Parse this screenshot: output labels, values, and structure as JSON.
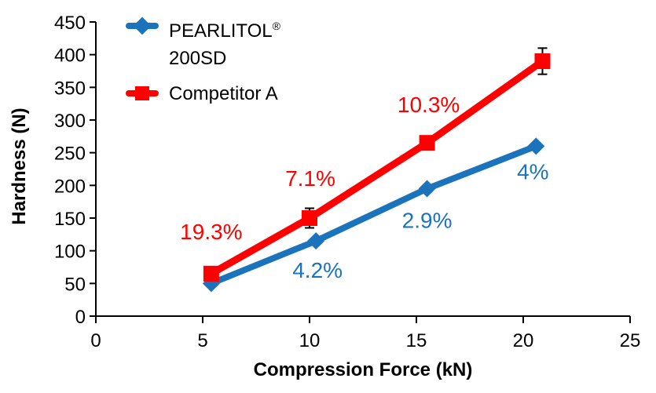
{
  "chart_data": {
    "type": "line",
    "title": "",
    "xlabel": "Compression Force (kN)",
    "ylabel": "Hardness (N)",
    "xlim": [
      0,
      25
    ],
    "ylim": [
      0,
      450
    ],
    "xticks": [
      0,
      5,
      10,
      15,
      20,
      25
    ],
    "yticks": [
      0,
      50,
      100,
      150,
      200,
      250,
      300,
      350,
      400,
      450
    ],
    "grid": false,
    "legend_position": "top-left-inside",
    "axis_color": "#000000",
    "error_bar_color": "#000000",
    "series": [
      {
        "name": "PEARLITOL® 200SD",
        "legend": {
          "line1": "PEARLITOL",
          "sup": "®",
          "line2": "200SD"
        },
        "color": "#1b74bb",
        "marker": "diamond",
        "marker_size": 22,
        "line_width": 8,
        "x": [
          5.4,
          10.3,
          15.5,
          20.6
        ],
        "y": [
          50,
          115,
          195,
          260
        ],
        "error": [
          0,
          0,
          0,
          0
        ],
        "point_labels": [
          {
            "text": "",
            "dx": 0,
            "dy": 0
          },
          {
            "text": "4.2%",
            "dx": 2,
            "dy": 47
          },
          {
            "text": "2.9%",
            "dx": 0,
            "dy": 50
          },
          {
            "text": "4%",
            "dx": -4,
            "dy": 42
          }
        ]
      },
      {
        "name": "Competitor A",
        "legend": {
          "line1": "Competitor A",
          "sup": "",
          "line2": ""
        },
        "color": "#fe0000",
        "marker": "square",
        "marker_size": 20,
        "line_width": 9,
        "x": [
          5.4,
          10.0,
          15.5,
          20.9
        ],
        "y": [
          65,
          150,
          265,
          390
        ],
        "error": [
          0,
          15,
          0,
          20
        ],
        "point_labels": [
          {
            "text": "19.3%",
            "dx": 0,
            "dy": -44
          },
          {
            "text": "7.1%",
            "dx": 1,
            "dy": -41
          },
          {
            "text": "10.3%",
            "dx": 2,
            "dy": -39
          },
          {
            "text": "",
            "dx": 0,
            "dy": 0
          }
        ]
      }
    ]
  }
}
